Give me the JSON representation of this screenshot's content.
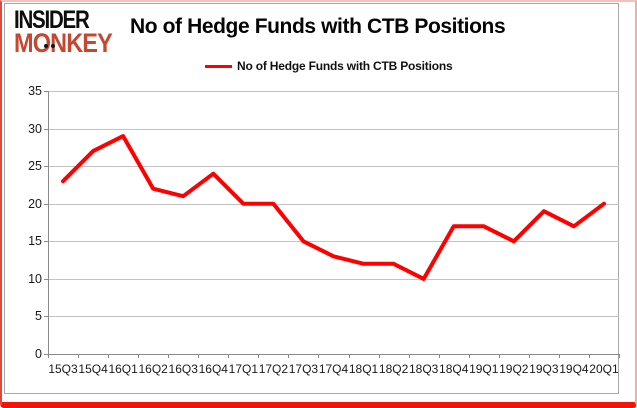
{
  "logo": {
    "line1": "INSIDER",
    "line2": "MONKEY"
  },
  "header": {
    "title": "No of Hedge Funds with CTB Positions"
  },
  "legend": {
    "label": "No of Hedge Funds with CTB Positions"
  },
  "colors": {
    "series_red": "#fe0000",
    "gridline": "#c3c3c3",
    "axis": "#8a8a8a",
    "logo_red": "#c64730",
    "border_bottom_red": "#f2140a"
  },
  "chart_data": {
    "type": "line",
    "title": "No of Hedge Funds with CTB Positions",
    "categories": [
      "15Q3",
      "15Q4",
      "16Q1",
      "16Q2",
      "16Q3",
      "16Q4",
      "17Q1",
      "17Q2",
      "17Q3",
      "17Q4",
      "18Q1",
      "18Q2",
      "18Q3",
      "18Q4",
      "19Q1",
      "19Q2",
      "19Q3",
      "19Q4",
      "20Q1"
    ],
    "series": [
      {
        "name": "No of Hedge Funds with CTB Positions",
        "color": "#fe0000",
        "values": [
          23,
          27,
          29,
          22,
          21,
          24,
          20,
          20,
          15,
          13,
          12,
          12,
          10,
          17,
          17,
          15,
          19,
          17,
          20
        ]
      }
    ],
    "xlabel": "",
    "ylabel": "",
    "ylim": [
      0,
      35
    ],
    "yticks": [
      0,
      5,
      10,
      15,
      20,
      25,
      30,
      35
    ],
    "grid": true,
    "legend_position": "top-center"
  }
}
